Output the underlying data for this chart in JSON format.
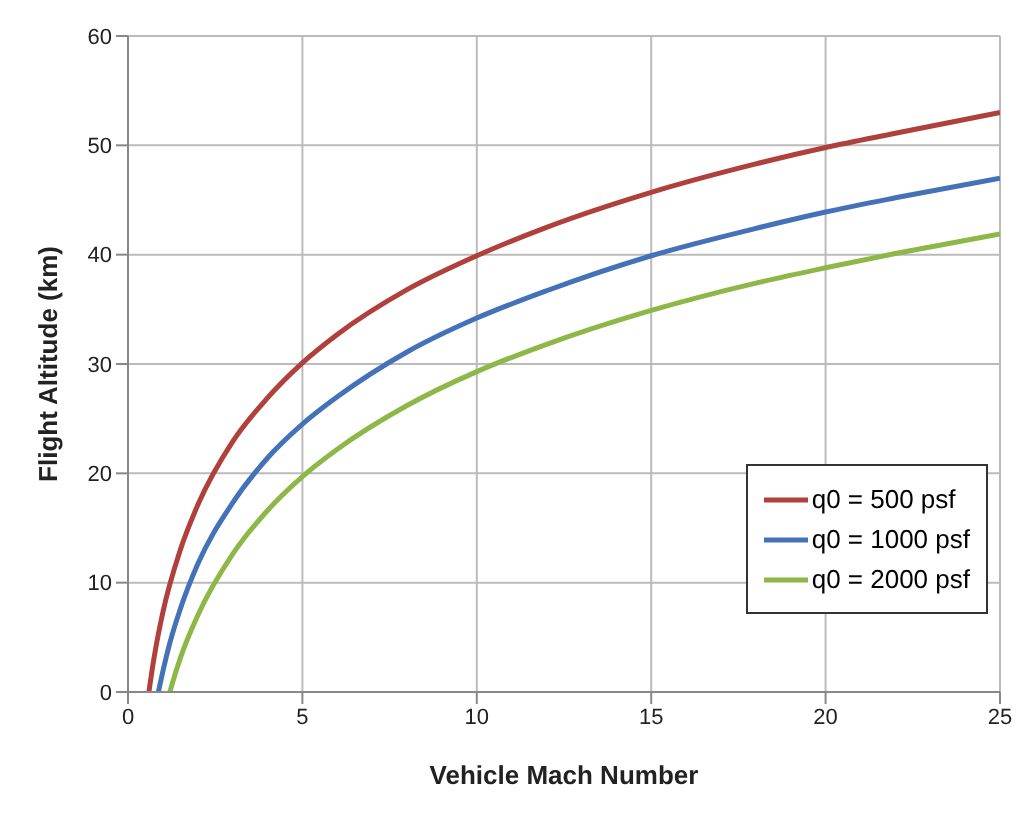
{
  "chart_data": {
    "type": "line",
    "xlabel": "Vehicle Mach Number",
    "ylabel": "Flight Altitude (km)",
    "xlim": [
      0,
      25
    ],
    "xticks": [
      0,
      5,
      10,
      15,
      20,
      25
    ],
    "ylim": [
      0,
      60
    ],
    "yticks": [
      0,
      10,
      20,
      30,
      40,
      50,
      60
    ],
    "grid": true,
    "legend": "bottom right",
    "marker": "none",
    "line_style": "solid",
    "series": [
      {
        "name": "q0 = 500 psf",
        "color": "#b0403c",
        "x": [
          0.6,
          0.7,
          0.8,
          1,
          1.5,
          2,
          3,
          4,
          5,
          6,
          8,
          10,
          12,
          15,
          18,
          20,
          22,
          25
        ],
        "values": [
          0,
          2.2,
          4.1,
          7.3,
          13.0,
          17.1,
          22.9,
          26.9,
          30.1,
          32.7,
          36.8,
          39.9,
          42.5,
          45.7,
          48.3,
          49.8,
          51.1,
          53.0
        ]
      },
      {
        "name": "q0 = 1000 psf",
        "color": "#4472b8",
        "x": [
          0.87,
          1,
          1.2,
          1.5,
          2,
          3,
          4,
          5,
          6,
          8,
          10,
          12,
          15,
          18,
          20,
          22,
          25
        ],
        "values": [
          0,
          1.9,
          4.5,
          7.6,
          11.7,
          17.3,
          21.4,
          24.5,
          27.0,
          31.1,
          34.2,
          36.7,
          39.9,
          42.4,
          43.9,
          45.2,
          47.0
        ]
      },
      {
        "name": "q0 = 2000 psf",
        "color": "#8db848",
        "x": [
          1.2,
          1.3,
          1.5,
          2,
          3,
          4,
          5,
          6,
          8,
          10,
          12,
          15,
          18,
          20,
          22,
          25
        ],
        "values": [
          0,
          1.1,
          3.1,
          7.0,
          12.6,
          16.6,
          19.7,
          22.2,
          26.2,
          29.3,
          31.8,
          34.9,
          37.4,
          38.8,
          40.1,
          41.9
        ]
      }
    ]
  }
}
